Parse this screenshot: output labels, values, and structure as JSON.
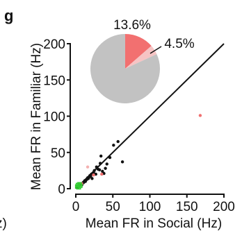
{
  "panel": {
    "letter": "g",
    "left_fragment": "z)"
  },
  "colors": {
    "axis": "#111111",
    "black_point": "#111111",
    "red_point": "#f07070",
    "pink_point": "#f4b0b0",
    "green_point": "#33cc33",
    "pie_grey": "#c2c2c2",
    "pie_red": "#f27070",
    "pie_pink": "#f6c4c4"
  },
  "chart_data": [
    {
      "type": "scatter",
      "xlabel": "Mean FR in Social (Hz)",
      "ylabel": "Mean FR in Familiar (Hz)",
      "xlim": [
        0,
        200
      ],
      "ylim": [
        0,
        200
      ],
      "xticks": [
        "0",
        "50",
        "100",
        "150",
        "200"
      ],
      "yticks": [
        "0",
        "50",
        "100",
        "150",
        "200"
      ],
      "reference_line": "y = x",
      "grid": false,
      "series": [
        {
          "color_key": "black_point",
          "points": [
            [
              3,
              2
            ],
            [
              5,
              4
            ],
            [
              7,
              6
            ],
            [
              8,
              5
            ],
            [
              10,
              8
            ],
            [
              11,
              9
            ],
            [
              12,
              11
            ],
            [
              13,
              10
            ],
            [
              14,
              12
            ],
            [
              15,
              13
            ],
            [
              16,
              15
            ],
            [
              17,
              14
            ],
            [
              18,
              16
            ],
            [
              19,
              18
            ],
            [
              20,
              17
            ],
            [
              21,
              20
            ],
            [
              22,
              14
            ],
            [
              24,
              22
            ],
            [
              25,
              25
            ],
            [
              27,
              20
            ],
            [
              28,
              30
            ],
            [
              30,
              27
            ],
            [
              32,
              26
            ],
            [
              33,
              35
            ],
            [
              34,
              45
            ],
            [
              36,
              24
            ],
            [
              38,
              21
            ],
            [
              40,
              28
            ],
            [
              42,
              34
            ],
            [
              46,
              43
            ],
            [
              51,
              60
            ],
            [
              57,
              65
            ],
            [
              63,
              37
            ]
          ]
        },
        {
          "color_key": "red_point",
          "points": [
            [
              8,
              7
            ],
            [
              24,
              19
            ],
            [
              35,
              20
            ],
            [
              168,
              101
            ]
          ]
        },
        {
          "color_key": "pink_point",
          "points": [
            [
              16,
              30
            ]
          ]
        },
        {
          "color_key": "green_point",
          "points": [
            [
              2,
              3
            ],
            [
              3,
              5
            ],
            [
              4,
              2
            ],
            [
              5,
              6
            ],
            [
              6,
              4
            ]
          ]
        }
      ]
    },
    {
      "type": "pie",
      "labels": [
        "13.6%",
        "4.5%"
      ],
      "slices": [
        {
          "value": 13.6,
          "color_key": "pie_red",
          "label": "13.6%"
        },
        {
          "value": 4.5,
          "color_key": "pie_pink",
          "label": "4.5%"
        },
        {
          "value": 81.9,
          "color_key": "pie_grey",
          "label": ""
        }
      ]
    }
  ]
}
